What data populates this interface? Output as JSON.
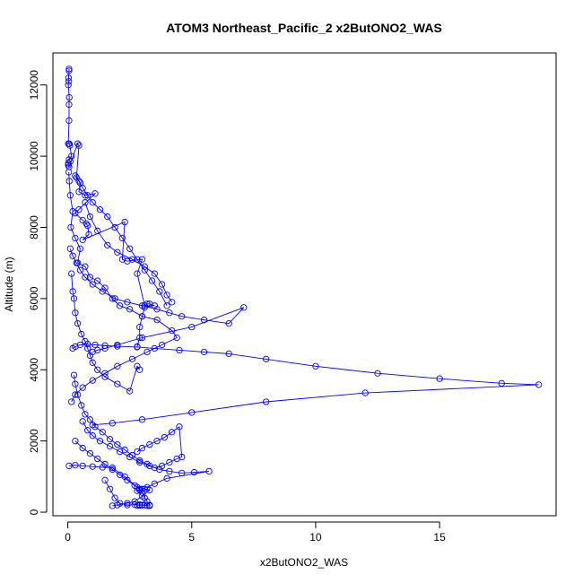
{
  "chart_data": {
    "type": "line",
    "title": "ATOM3 Northeast_Pacific_2 x2ButONO2_WAS",
    "xlabel": "x2ButONO2_WAS",
    "ylabel": "Altitude (m)",
    "xlim": [
      -0.6,
      19.7
    ],
    "ylim": [
      -100,
      12900
    ],
    "x_ticks": [
      0,
      5,
      10,
      15
    ],
    "y_ticks": [
      0,
      2000,
      4000,
      6000,
      8000,
      10000,
      12000
    ],
    "grid": false,
    "line_color": "#0000ff",
    "marker": "open-circle",
    "series": [
      {
        "x": [
          0.05,
          0.05,
          0.03,
          0.04,
          0.02,
          0.06,
          0.05,
          0.05,
          0.02,
          0.06,
          0.08,
          0.15,
          0.05,
          0.1,
          0.02,
          0.02,
          0.05,
          0.4,
          0.45,
          0.35,
          0.5,
          0.45,
          0.7,
          1.1,
          0.45,
          0.3,
          0.6,
          0.75,
          0.8,
          0.85,
          0.6,
          2.3,
          2.2,
          2.4,
          3.0,
          2.8,
          3.1,
          3.5,
          3.3,
          3.2,
          3.1,
          3.0,
          2.9,
          2.9,
          2.8
        ],
        "y": [
          12450,
          12400,
          12200,
          12100,
          12000,
          11650,
          11450,
          11000,
          10350,
          10350,
          10300,
          10000,
          9900,
          9850,
          9800,
          9750,
          9700,
          10350,
          10300,
          9400,
          9250,
          9000,
          8900,
          8950,
          8500,
          8400,
          8200,
          8100,
          8050,
          7800,
          7650,
          8150,
          7100,
          7050,
          7100,
          6700,
          5800,
          5800,
          5850,
          5850,
          5750,
          5500,
          5200,
          4900,
          4650
        ]
      },
      {
        "x": [
          0.04,
          0.06,
          0.1,
          0.2,
          0.12,
          0.3,
          0.5,
          0.4,
          0.7,
          0.9,
          1.2,
          1.5,
          1.8,
          2.1,
          2.5,
          3.0,
          3.6,
          4.2,
          4.4,
          3.8,
          3.2,
          2.6,
          2.0,
          1.5,
          1.0,
          0.6,
          0.3,
          0.15
        ],
        "y": [
          9550,
          9300,
          8900,
          8450,
          8000,
          7700,
          7400,
          7000,
          6900,
          6600,
          6500,
          6300,
          6000,
          5800,
          5700,
          5500,
          5400,
          5100,
          4900,
          4700,
          4500,
          4300,
          4100,
          3900,
          3700,
          3500,
          3300,
          3100
        ]
      },
      {
        "x": [
          0.1,
          0.2,
          0.35,
          0.5,
          0.7,
          1.0,
          1.4,
          1.9,
          2.4,
          3.0,
          3.6,
          4.1,
          4.6,
          5.5,
          6.5,
          7.1,
          5.0,
          3.0,
          2.0,
          1.5,
          1.2,
          1.0
        ],
        "y": [
          7400,
          7200,
          7000,
          6800,
          6600,
          6400,
          6200,
          6000,
          5900,
          5800,
          5700,
          5600,
          5500,
          5400,
          5300,
          5750,
          5200,
          4900,
          4700,
          4600,
          4550,
          4500
        ]
      },
      {
        "x": [
          0.2,
          0.3,
          0.5,
          0.8,
          1.1,
          1.5,
          2.0,
          2.8,
          3.5,
          4.5,
          5.5,
          6.5,
          8.0,
          10.0,
          12.5,
          15.0,
          17.5,
          19.0,
          12.0,
          8.0,
          5.0,
          3.0,
          1.8,
          1.0
        ],
        "y": [
          4600,
          4650,
          4700,
          4720,
          4700,
          4680,
          4660,
          4640,
          4600,
          4550,
          4500,
          4450,
          4300,
          4100,
          3900,
          3750,
          3620,
          3580,
          3350,
          3100,
          2800,
          2600,
          2500,
          2450
        ]
      },
      {
        "x": [
          0.25,
          0.3,
          0.4,
          0.55,
          0.7,
          0.9,
          1.1,
          1.4,
          1.7,
          2.0,
          2.3,
          2.6,
          2.9,
          3.2,
          3.5,
          3.8,
          4.1,
          4.4,
          4.6,
          4.5,
          4.2,
          3.9,
          3.6,
          3.3,
          3.0,
          2.8
        ],
        "y": [
          3850,
          3600,
          3300,
          3000,
          2750,
          2600,
          2400,
          2250,
          2050,
          1900,
          1750,
          1600,
          1450,
          1350,
          1250,
          1300,
          1400,
          1500,
          1550,
          2400,
          2250,
          2100,
          2000,
          1900,
          1800,
          1700
        ]
      },
      {
        "x": [
          0.6,
          0.8,
          1.0,
          1.3,
          1.7,
          2.1,
          2.5,
          2.9,
          3.3,
          3.7,
          4.1,
          4.6,
          5.1,
          5.7,
          4.0,
          3.5,
          3.2,
          3.0,
          2.9,
          2.8
        ],
        "y": [
          2550,
          2300,
          2150,
          2000,
          1850,
          1700,
          1550,
          1400,
          1300,
          1200,
          1150,
          1100,
          1120,
          1150,
          950,
          800,
          700,
          650,
          620,
          600
        ]
      },
      {
        "x": [
          0.05,
          0.3,
          0.6,
          1.0,
          1.4,
          1.8,
          2.3,
          2.8,
          3.1,
          3.3,
          3.0,
          2.7,
          2.4,
          2.0,
          1.8
        ],
        "y": [
          1300,
          1320,
          1300,
          1280,
          1260,
          1250,
          1000,
          700,
          650,
          620,
          450,
          300,
          250,
          200,
          180
        ]
      },
      {
        "x": [
          0.3,
          0.6,
          0.9,
          1.2,
          1.5,
          1.8,
          2.1,
          2.4,
          2.7,
          2.9,
          3.0,
          3.1,
          3.2,
          3.3
        ],
        "y": [
          2000,
          1800,
          1650,
          1500,
          1350,
          1200,
          1050,
          900,
          750,
          650,
          550,
          400,
          300,
          200
        ]
      },
      {
        "x": [
          1.5,
          1.7,
          1.9,
          2.1,
          2.4,
          2.7,
          2.9,
          3.0,
          3.1,
          3.2,
          3.3,
          3.0,
          2.9,
          2.8
        ],
        "y": [
          900,
          650,
          400,
          250,
          200,
          210,
          190,
          200,
          200,
          180,
          180,
          200,
          210,
          190
        ]
      },
      {
        "x": [
          0.15,
          0.2,
          0.25,
          0.3,
          0.4,
          0.55,
          0.7,
          0.8,
          0.9,
          1.0,
          1.2,
          1.5,
          2.0,
          2.5,
          2.8,
          2.9
        ],
        "y": [
          6700,
          6200,
          6000,
          5600,
          5300,
          5000,
          4800,
          4600,
          4400,
          4200,
          4000,
          3800,
          3600,
          3400,
          4100,
          4000
        ]
      },
      {
        "x": [
          0.7,
          0.9,
          1.2,
          1.6,
          2.0,
          2.6,
          3.1,
          3.5,
          3.8,
          4.0,
          4.2
        ],
        "y": [
          8700,
          8300,
          7900,
          7500,
          7300,
          7100,
          6900,
          6700,
          6400,
          6100,
          5900
        ]
      },
      {
        "x": [
          0.3,
          0.45,
          0.6,
          0.8,
          1.0,
          1.3,
          1.6,
          1.9,
          2.2,
          2.5,
          2.8,
          3.1,
          3.4,
          3.7,
          4.0
        ],
        "y": [
          9450,
          9300,
          9100,
          8900,
          8700,
          8500,
          8300,
          8000,
          7700,
          7400,
          7100,
          6800,
          6500,
          6200,
          5800
        ]
      }
    ]
  }
}
